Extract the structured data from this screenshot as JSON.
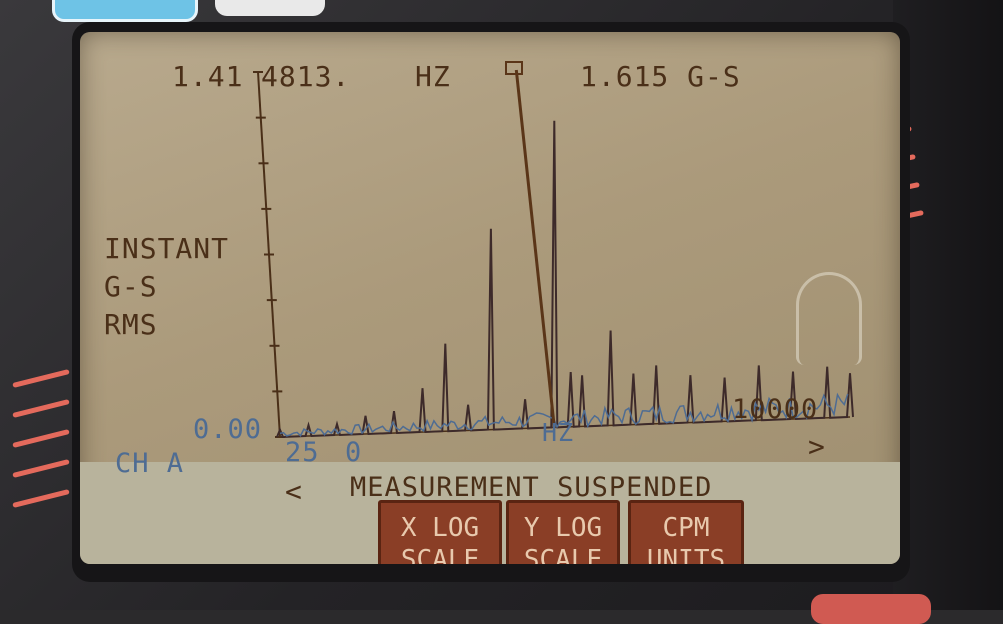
{
  "readout": {
    "value": "1.41",
    "frequency": "4813.",
    "freq_unit": "HZ",
    "amplitude": "1.615 G-S"
  },
  "y_axis_label": [
    "INSTANT",
    "G-S",
    "RMS"
  ],
  "axis": {
    "y_min": "0.00",
    "x_max": "10000",
    "x_unit": "HZ"
  },
  "channel": "CH A",
  "zoom": [
    "25",
    "0"
  ],
  "status": "MEASUREMENT SUSPENDED",
  "nav": {
    "left": "<",
    "right": ">"
  },
  "softkeys": {
    "xlog": [
      "X LOG",
      "SCALE"
    ],
    "ylog": [
      "Y LOG",
      "SCALE"
    ],
    "cpm": [
      "CPM",
      "UNITS"
    ]
  },
  "colors": {
    "lcd": "#ab9a7b",
    "ink": "#4a2f18",
    "trace_blue": "#4e6c93",
    "softkey": "#8a3e26",
    "bezel_tick": "#e46a5c"
  },
  "chart_data": {
    "type": "line",
    "x_range": [
      0,
      10000
    ],
    "cursor_x": 4813,
    "series": [
      {
        "x": [
          0,
          500,
          1000,
          1500,
          2000,
          2500,
          2900,
          3300,
          3700,
          4300,
          4813,
          5100,
          5300,
          5800,
          6200,
          6600,
          7200,
          7800,
          8400,
          9000,
          9600,
          10000
        ],
        "values": [
          0.02,
          0.03,
          0.03,
          0.05,
          0.06,
          0.12,
          0.24,
          0.07,
          0.55,
          0.08,
          0.84,
          0.15,
          0.14,
          0.26,
          0.14,
          0.16,
          0.13,
          0.12,
          0.15,
          0.13,
          0.14,
          0.12
        ]
      }
    ]
  }
}
